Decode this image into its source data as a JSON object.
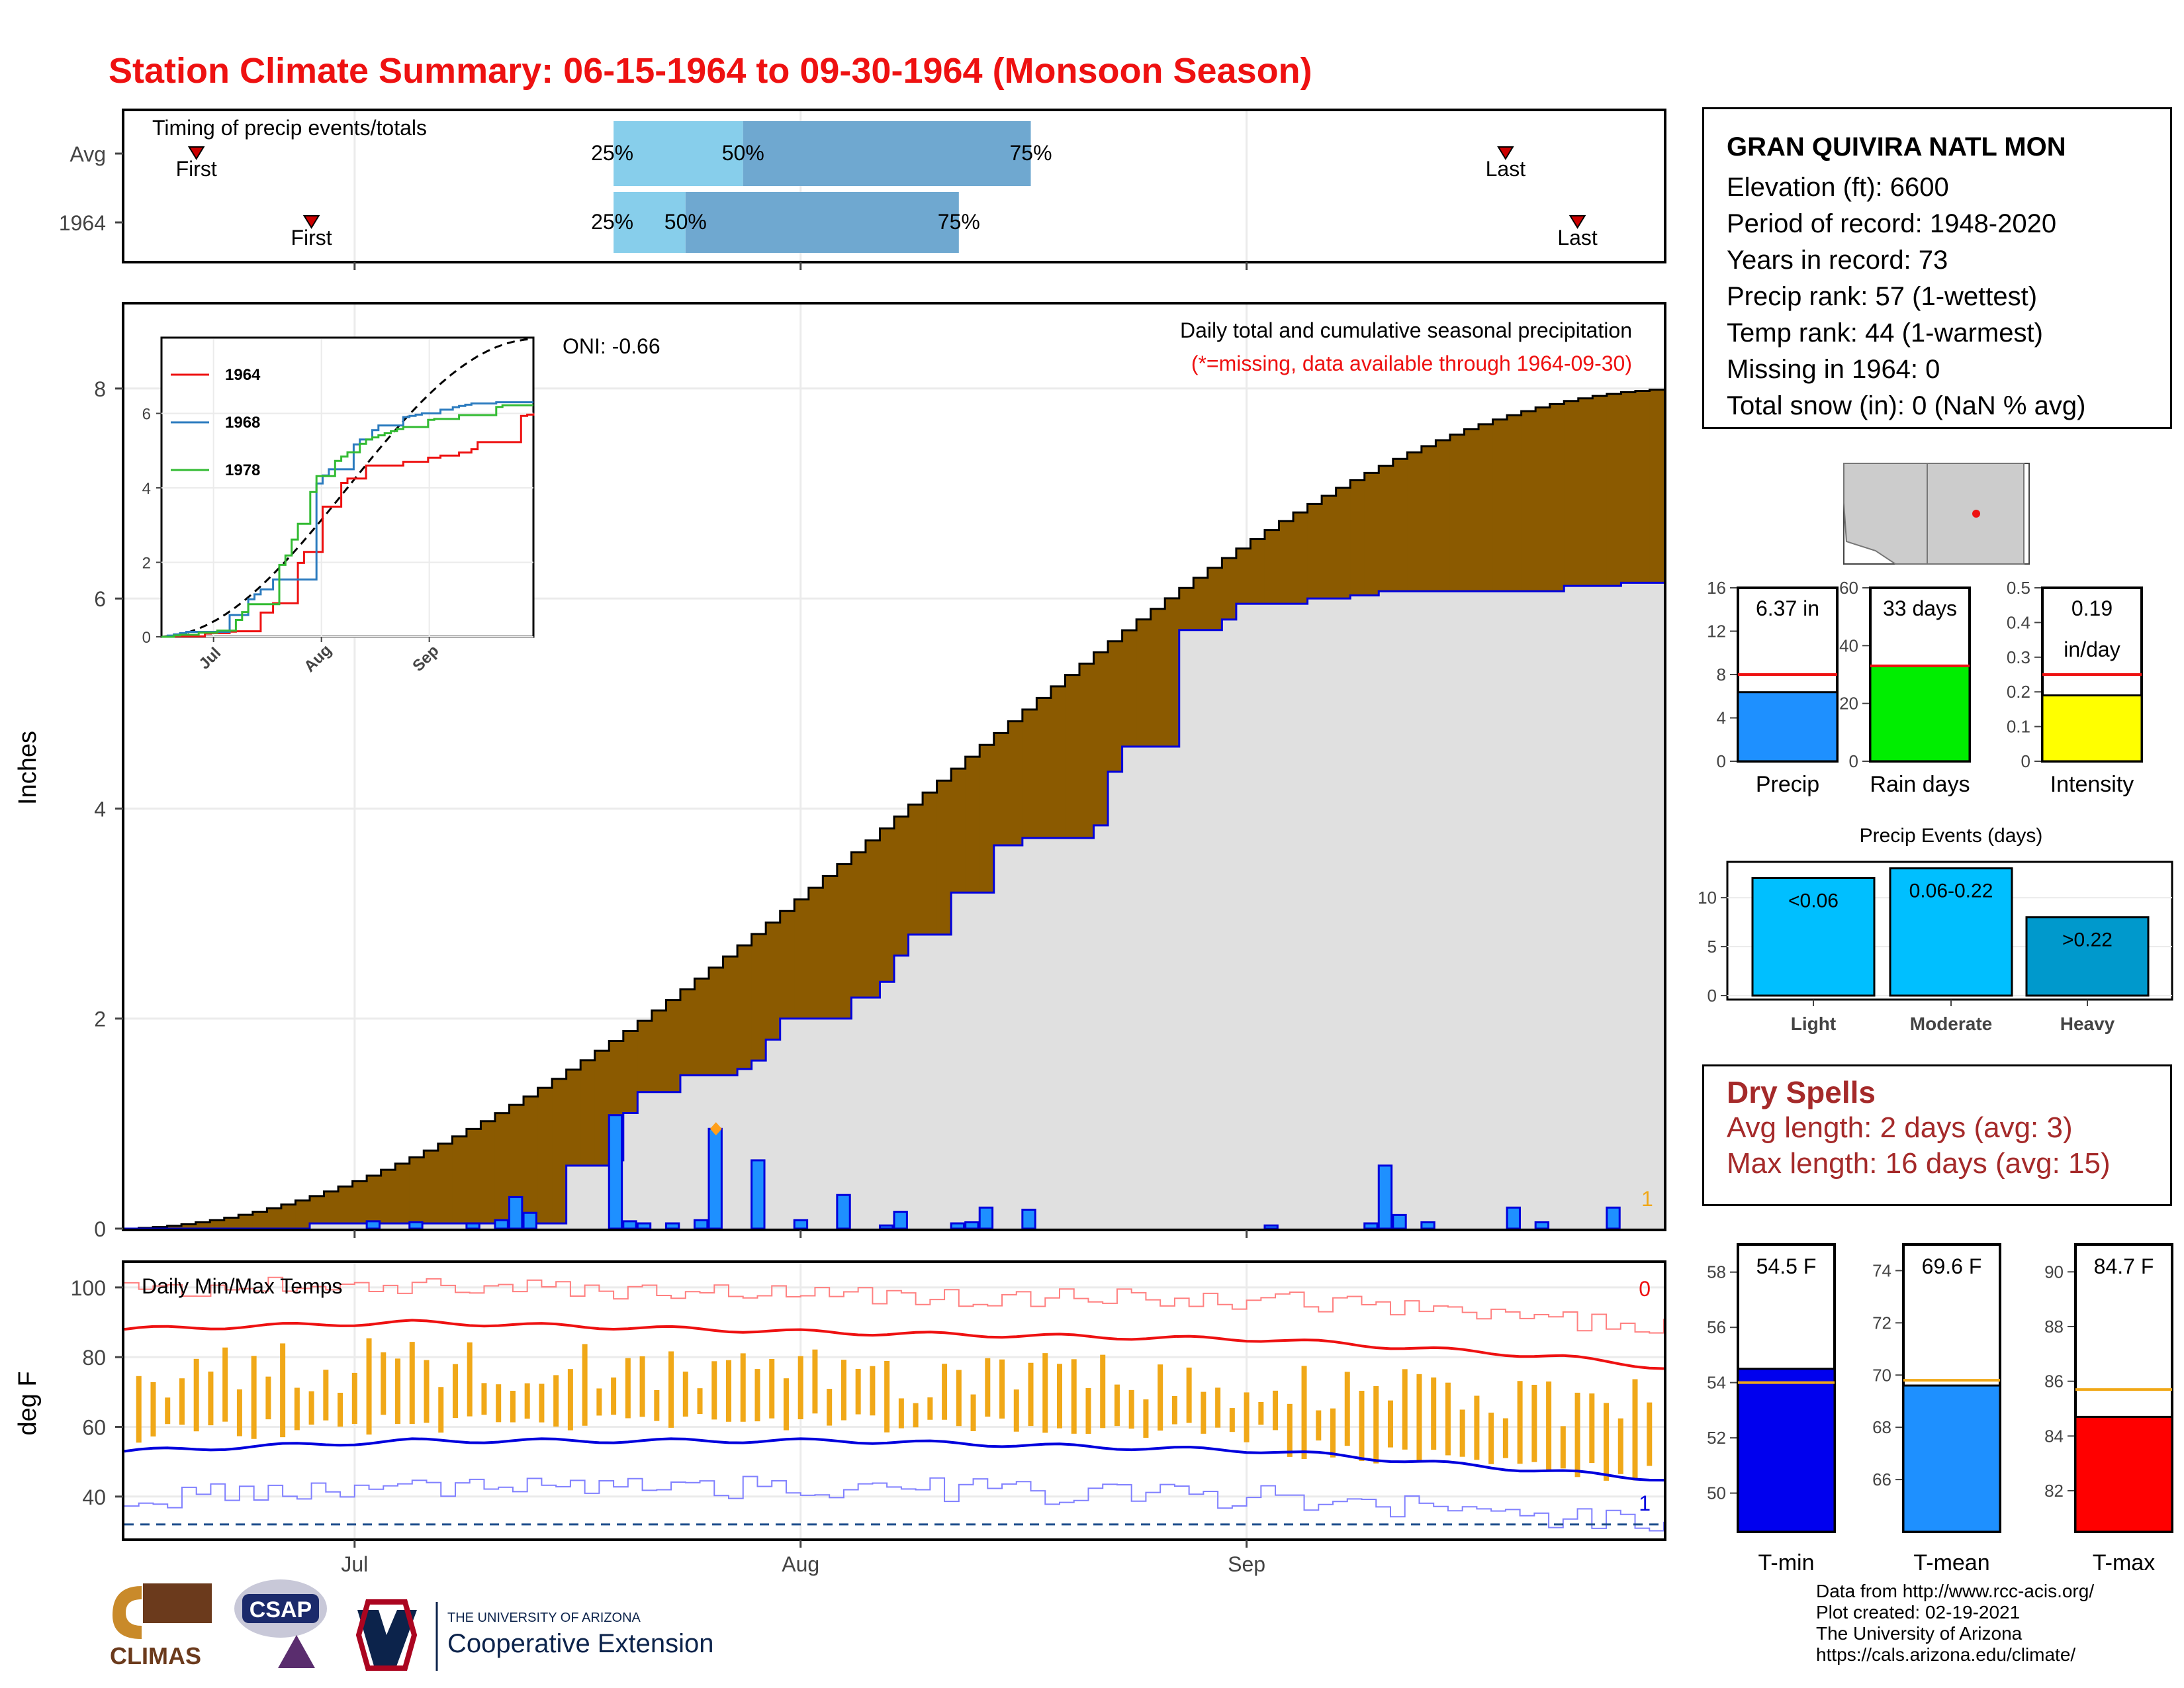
{
  "title": "Station Climate Summary: 06-15-1964 to 09-30-1964 (Monsoon Season)",
  "station": {
    "name": "GRAN QUIVIRA NATL MON",
    "lines": [
      "Elevation (ft): 6600",
      "Period of record: 1948-2020",
      "Years in record: 73",
      "Precip rank: 57 (1-wettest)",
      "Temp rank: 44 (1-warmest)",
      "Missing in 1964: 0",
      "Total snow (in): 0 (NaN % avg)"
    ]
  },
  "dry_spells": {
    "heading": "Dry Spells",
    "avg": "Avg length: 2 days (avg: 3)",
    "max": "Max length: 16 days (avg: 15)"
  },
  "credits": [
    "Data from http://www.rcc-acis.org/",
    "Plot created: 02-19-2021",
    "The University of Arizona",
    "https://cals.arizona.edu/climate/"
  ],
  "logos": {
    "climas": "CLIMAS",
    "csap": "CSAP",
    "ua_small": "THE UNIVERSITY OF ARIZONA",
    "ua_big": "Cooperative Extension"
  },
  "colors": {
    "title": "#ee1111",
    "brown": "#8b5a00",
    "green": "#007f00",
    "grey": "#e0e0e0",
    "bar_blue": "#1e90ff",
    "line_blue": "#0000dd",
    "red": "#ee1111",
    "orange": "#f0a818",
    "light_blue": "#87ceeb",
    "mid_blue": "#6fa8d0",
    "lightblue_events": "#00bfff",
    "tmean": "#1e90ff",
    "tmax": "#ff0000",
    "tmin": "#0000ee",
    "rain_green": "#00ee00",
    "yellow": "#ffff00"
  },
  "chart_data": [
    {
      "id": "timing",
      "type": "bar",
      "title": "Timing of precip events/totals",
      "x_range": [
        "06-15",
        "09-30"
      ],
      "tick_labels": [
        "Jul",
        "Aug",
        "Sep"
      ],
      "rows": [
        {
          "name": "Avg",
          "first": "06-20",
          "q25": "07-19",
          "q50": "07-28",
          "q75": "08-17",
          "last": "09-19"
        },
        {
          "name": "1964",
          "first": "06-28",
          "q25": "07-19",
          "q50": "07-24",
          "q75": "08-12",
          "last": "09-24"
        }
      ],
      "labels": {
        "first": "First",
        "last": "Last",
        "q25": "25%",
        "q50": "50%",
        "q75": "75%"
      }
    },
    {
      "id": "precip_main",
      "type": "area",
      "title": "Daily total and cumulative seasonal precipitation",
      "subtitle": "(*=missing, data available through 1964-09-30)",
      "annotation": "ONI: -0.66",
      "corner_count": "1",
      "ylabel": "Inches",
      "ylim": [
        0,
        8.8
      ],
      "yticks": [
        0,
        2,
        4,
        6,
        8
      ],
      "x_start": "1964-06-15",
      "n_days": 108,
      "avg_cumulative_end": 8.0,
      "cumulative_1964": [
        [
          0,
          0
        ],
        [
          20,
          0.05
        ],
        [
          48,
          0.6
        ],
        [
          53,
          0.65
        ],
        [
          54,
          0.95
        ],
        [
          55,
          1.1
        ],
        [
          56,
          1.3
        ],
        [
          60,
          1.46
        ],
        [
          67,
          1.52
        ],
        [
          69,
          1.6
        ],
        [
          70,
          1.8
        ],
        [
          71,
          2.0
        ],
        [
          80,
          2.2
        ],
        [
          83,
          2.35
        ],
        [
          84,
          2.45
        ],
        [
          85,
          2.6
        ],
        [
          86,
          2.8
        ],
        [
          91,
          3.2
        ],
        [
          95,
          3.6
        ],
        [
          96,
          3.65
        ],
        [
          98,
          3.72
        ],
        [
          106,
          3.79
        ],
        [
          107,
          3.84
        ],
        [
          108,
          4.35
        ],
        [
          109,
          4.59
        ],
        [
          115,
          4.83
        ],
        [
          116,
          5.7
        ],
        [
          121,
          5.8
        ],
        [
          122,
          5.95
        ],
        [
          130,
          6.0
        ],
        [
          135,
          6.03
        ],
        [
          138,
          6.07
        ],
        [
          158,
          6.12
        ],
        [
          165,
          6.15
        ],
        [
          170,
          6.37
        ]
      ],
      "daily_bars": [
        {
          "day": 17,
          "value": 0.07
        },
        {
          "day": 20,
          "value": 0.06
        },
        {
          "day": 24,
          "value": 0.05
        },
        {
          "day": 26,
          "value": 0.08
        },
        {
          "day": 27,
          "value": 0.3
        },
        {
          "day": 28,
          "value": 0.15
        },
        {
          "day": 34,
          "value": 1.08
        },
        {
          "day": 35,
          "value": 0.07
        },
        {
          "day": 36,
          "value": 0.05
        },
        {
          "day": 38,
          "value": 0.05
        },
        {
          "day": 40,
          "value": 0.08
        },
        {
          "day": 41,
          "value": 0.95
        },
        {
          "day": 44,
          "value": 0.65
        },
        {
          "day": 47,
          "value": 0.08
        },
        {
          "day": 50,
          "value": 0.32
        },
        {
          "day": 53,
          "value": 0.03
        },
        {
          "day": 54,
          "value": 0.16
        },
        {
          "day": 58,
          "value": 0.05
        },
        {
          "day": 59,
          "value": 0.06
        },
        {
          "day": 60,
          "value": 0.2
        },
        {
          "day": 63,
          "value": 0.18
        },
        {
          "day": 80,
          "value": 0.03
        },
        {
          "day": 87,
          "value": 0.05
        },
        {
          "day": 88,
          "value": 0.6
        },
        {
          "day": 89,
          "value": 0.13
        },
        {
          "day": 91,
          "value": 0.06
        },
        {
          "day": 97,
          "value": 0.2
        },
        {
          "day": 99,
          "value": 0.06
        },
        {
          "day": 104,
          "value": 0.2
        }
      ],
      "missing_marker": {
        "day": 41,
        "value": 0.95
      }
    },
    {
      "id": "inset",
      "type": "line",
      "series": [
        {
          "name": "1964",
          "color": "#ee1111"
        },
        {
          "name": "1968",
          "color": "#2b7bbf"
        },
        {
          "name": "1978",
          "color": "#33bb33"
        }
      ],
      "yticks": [
        0,
        2,
        4,
        6
      ],
      "xticks": [
        "Jul",
        "Aug",
        "Sep"
      ],
      "ylim": [
        0,
        8
      ]
    },
    {
      "id": "summary_bars",
      "type": "bar",
      "panels": [
        {
          "category": "Precip",
          "value": 6.37,
          "avg": 8.0,
          "label": "6.37 in",
          "ylim": [
            0,
            16
          ],
          "yticks": [
            0,
            4,
            8,
            12,
            16
          ],
          "color": "#1e90ff"
        },
        {
          "category": "Rain days",
          "value": 33,
          "avg": 33,
          "label": "33 days",
          "ylim": [
            0,
            60
          ],
          "yticks": [
            0,
            20,
            40,
            60
          ],
          "color": "#00ee00"
        },
        {
          "category": "Intensity",
          "value": 0.19,
          "avg": 0.25,
          "label": "0.19",
          "label2": "in/day",
          "ylim": [
            0,
            0.5
          ],
          "yticks": [
            0.0,
            0.1,
            0.2,
            0.3,
            0.4,
            0.5
          ],
          "color": "#ffff00"
        }
      ]
    },
    {
      "id": "precip_events",
      "type": "bar",
      "title": "Precip Events (days)",
      "categories": [
        "Light",
        "Moderate",
        "Heavy"
      ],
      "values": [
        12,
        13,
        8
      ],
      "bar_labels": [
        "<0.06",
        "0.06-0.22",
        ">0.22"
      ],
      "ylim": [
        0,
        13.5
      ],
      "yticks": [
        0,
        5,
        10
      ]
    },
    {
      "id": "temps",
      "type": "line",
      "title": "Daily Min/Max Temps",
      "ylabel": "deg F",
      "ylim": [
        28,
        107
      ],
      "yticks": [
        40,
        60,
        80,
        100
      ],
      "xticks": [
        "Jul",
        "Aug",
        "Sep"
      ],
      "count_top": "0",
      "count_bottom": "1",
      "freeze_line": 32,
      "tmax_avg_pts": [
        [
          0,
          88
        ],
        [
          20,
          90
        ],
        [
          50,
          87
        ],
        [
          80,
          85
        ],
        [
          100,
          80
        ],
        [
          107,
          77
        ]
      ],
      "tmin_avg_pts": [
        [
          0,
          53
        ],
        [
          20,
          56
        ],
        [
          50,
          56
        ],
        [
          80,
          53
        ],
        [
          100,
          47
        ],
        [
          107,
          45
        ]
      ]
    },
    {
      "id": "temp_summary",
      "type": "bar",
      "panels": [
        {
          "category": "T-min",
          "value": 54.5,
          "avg": 54.0,
          "label": "54.5 F",
          "ylim": [
            48.6,
            59.0
          ],
          "yticks": [
            50,
            52,
            54,
            56,
            58
          ],
          "color": "#0000ee"
        },
        {
          "category": "T-mean",
          "value": 69.6,
          "avg": 69.8,
          "label": "69.6 F",
          "ylim": [
            64.0,
            75.0
          ],
          "yticks": [
            66,
            68,
            70,
            72,
            74
          ],
          "color": "#1e90ff"
        },
        {
          "category": "T-max",
          "value": 84.7,
          "avg": 85.7,
          "label": "84.7 F",
          "ylim": [
            80.5,
            91.0
          ],
          "yticks": [
            82,
            84,
            86,
            88,
            90
          ],
          "color": "#ff0000"
        }
      ]
    }
  ]
}
